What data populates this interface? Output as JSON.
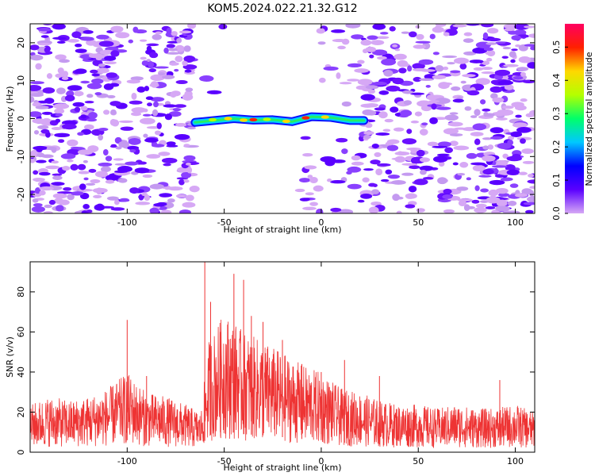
{
  "title": "KOM5.2024.022.21.32.G12",
  "chart_data": [
    {
      "type": "heatmap",
      "xlabel": "Height of straight line (km)",
      "ylabel": "Frequency (Hz)",
      "xlim": [
        -150,
        110
      ],
      "ylim": [
        -25,
        25
      ],
      "xticks": [
        -100,
        -50,
        0,
        50,
        100
      ],
      "yticks": [
        -20,
        -10,
        0,
        10,
        20
      ],
      "colorbar": {
        "label": "Normalized spectral amplitude",
        "range": [
          0.0,
          0.57
        ],
        "ticks": [
          0.0,
          0.1,
          0.2,
          0.3,
          0.4,
          0.5
        ],
        "colormap": [
          "#d6a8f5",
          "#5a00ff",
          "#0000ff",
          "#00c8ff",
          "#00ff6a",
          "#b4ff00",
          "#ffd800",
          "#ff2000",
          "#ff0060"
        ]
      },
      "signal_track": [
        {
          "x": -65,
          "f": -1.0
        },
        {
          "x": -55,
          "f": -0.5
        },
        {
          "x": -45,
          "f": 0.0
        },
        {
          "x": -35,
          "f": -0.4
        },
        {
          "x": -25,
          "f": -0.3
        },
        {
          "x": -15,
          "f": -0.8
        },
        {
          "x": -5,
          "f": 0.5
        },
        {
          "x": 5,
          "f": 0.3
        },
        {
          "x": 15,
          "f": -0.5
        },
        {
          "x": 22,
          "f": -0.5
        }
      ]
    },
    {
      "type": "line",
      "xlabel": "Height of straight line (km)",
      "ylabel": "SNR (v/v)",
      "xlim": [
        -150,
        110
      ],
      "ylim": [
        0,
        95
      ],
      "xticks": [
        -100,
        -50,
        0,
        50,
        100
      ],
      "yticks": [
        0,
        20,
        40,
        60,
        80
      ],
      "series": [
        {
          "color": "#ee3333",
          "points": [
            [
              -150,
              12
            ],
            [
              -140,
              14
            ],
            [
              -130,
              13
            ],
            [
              -120,
              14
            ],
            [
              -110,
              16
            ],
            [
              -100,
              20
            ],
            [
              -90,
              15
            ],
            [
              -80,
              14
            ],
            [
              -70,
              12
            ],
            [
              -62,
              10
            ],
            [
              -58,
              28
            ],
            [
              -50,
              35
            ],
            [
              -45,
              33
            ],
            [
              -40,
              30
            ],
            [
              -30,
              28
            ],
            [
              -20,
              25
            ],
            [
              -10,
              22
            ],
            [
              0,
              20
            ],
            [
              10,
              16
            ],
            [
              20,
              15
            ],
            [
              30,
              13
            ],
            [
              40,
              12
            ],
            [
              50,
              12
            ],
            [
              60,
              11
            ],
            [
              70,
              12
            ],
            [
              80,
              11
            ],
            [
              90,
              11
            ],
            [
              100,
              12
            ],
            [
              110,
              10
            ]
          ],
          "peaks": [
            [
              -100,
              66
            ],
            [
              -90,
              38
            ],
            [
              -60,
              95
            ],
            [
              -57,
              75
            ],
            [
              -52,
              60
            ],
            [
              -45,
              89
            ],
            [
              -40,
              86
            ],
            [
              -36,
              68
            ],
            [
              -30,
              65
            ],
            [
              -20,
              56
            ],
            [
              -10,
              44
            ],
            [
              0,
              40
            ],
            [
              12,
              46
            ],
            [
              30,
              38
            ],
            [
              92,
              36
            ]
          ]
        }
      ]
    }
  ]
}
